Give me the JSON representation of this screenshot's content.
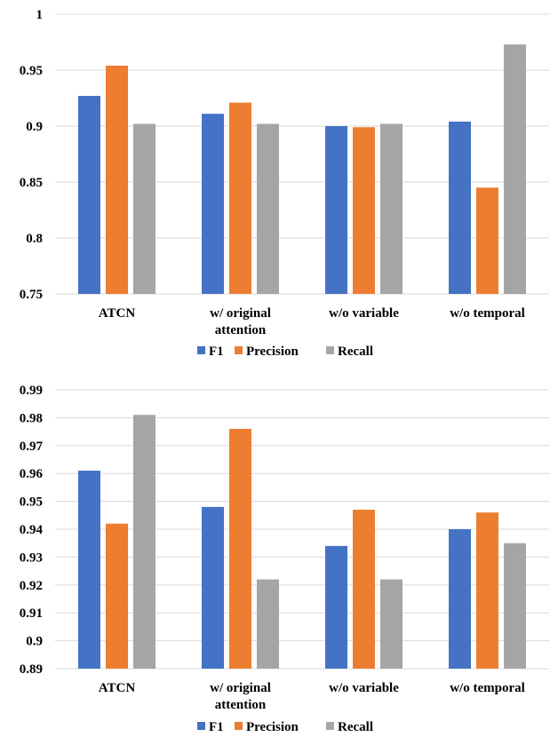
{
  "chart_data": [
    {
      "type": "bar",
      "categories": [
        [
          "ATCN"
        ],
        [
          "w/ original",
          "attention"
        ],
        [
          "w/o variable"
        ],
        [
          "w/o temporal"
        ]
      ],
      "series": [
        {
          "name": "F1",
          "color": "#4472c4",
          "values": [
            0.927,
            0.911,
            0.9,
            0.904
          ]
        },
        {
          "name": "Precision",
          "color": "#ed7d31",
          "values": [
            0.954,
            0.921,
            0.899,
            0.845
          ]
        },
        {
          "name": "Recall",
          "color": "#a5a5a5",
          "values": [
            0.902,
            0.902,
            0.902,
            0.973
          ]
        }
      ],
      "ylim": [
        0.75,
        1.0
      ],
      "yticks": [
        "0.75",
        "0.8",
        "0.85",
        "0.9",
        "0.95",
        "1"
      ],
      "grid": true,
      "legend": "bottom"
    },
    {
      "type": "bar",
      "categories": [
        [
          "ATCN"
        ],
        [
          "w/ original",
          "attention"
        ],
        [
          "w/o variable"
        ],
        [
          "w/o temporal"
        ]
      ],
      "series": [
        {
          "name": "F1",
          "color": "#4472c4",
          "values": [
            0.961,
            0.948,
            0.934,
            0.94
          ]
        },
        {
          "name": "Precision",
          "color": "#ed7d31",
          "values": [
            0.942,
            0.976,
            0.947,
            0.946
          ]
        },
        {
          "name": "Recall",
          "color": "#a5a5a5",
          "values": [
            0.981,
            0.922,
            0.922,
            0.935
          ]
        }
      ],
      "ylim": [
        0.89,
        0.99
      ],
      "yticks": [
        "0.89",
        "0.9",
        "0.91",
        "0.92",
        "0.93",
        "0.94",
        "0.95",
        "0.96",
        "0.97",
        "0.98",
        "0.99"
      ],
      "grid": true,
      "legend": "bottom"
    }
  ]
}
